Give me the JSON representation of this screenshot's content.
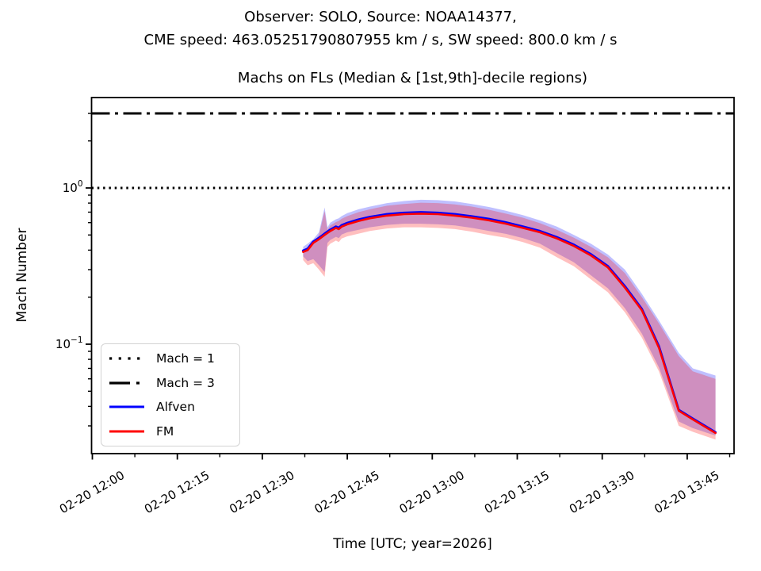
{
  "figure": {
    "suptitle_line1": "Observer: SOLO, Source: NOAA14377,",
    "suptitle_line2": "CME speed: 463.05251790807955 km / s, SW speed: 800.0 km / s"
  },
  "chart_data": {
    "type": "line",
    "title": "Machs on FLs (Median & [1st,9th]-decile regions)",
    "xlabel": "Time [UTC; year=2026]",
    "ylabel": "Mach Number",
    "y_scale": "log",
    "ylim": [
      0.02,
      3.8
    ],
    "grid": false,
    "x_tick_labels": [
      "02-20 12:00",
      "02-20 12:15",
      "02-20 12:30",
      "02-20 12:45",
      "02-20 13:00",
      "02-20 13:15",
      "02-20 13:30",
      "02-20 13:45"
    ],
    "x_tick_minutes": [
      0,
      15,
      30,
      45,
      60,
      75,
      90,
      105
    ],
    "x_minor_tick_minutes": [
      7.5,
      22.5,
      37.5,
      52.5,
      67.5,
      82.5,
      97.5,
      112.5
    ],
    "y_ticks": [
      {
        "value": 1,
        "label": "10^0"
      },
      {
        "value": 0.1,
        "label": "10^-1"
      }
    ],
    "y_minor_tick_values": [
      3,
      2,
      0.9,
      0.8,
      0.7,
      0.6,
      0.5,
      0.4,
      0.3,
      0.2,
      0.09,
      0.08,
      0.07,
      0.06,
      0.05,
      0.04,
      0.03
    ],
    "reference_lines": [
      {
        "label": "Mach = 1",
        "value": 1,
        "style": "dotted",
        "color": "#000000"
      },
      {
        "label": "Mach = 3",
        "value": 3,
        "style": "dashdot",
        "color": "#000000"
      }
    ],
    "band_alpha": 0.25,
    "x_minutes_after_1200utc": [
      37.2,
      38,
      39,
      40,
      41,
      41.5,
      42,
      43,
      43.5,
      44,
      45,
      47,
      49,
      52,
      55,
      58,
      61,
      64,
      67,
      70,
      73,
      76,
      79,
      82,
      85,
      88,
      91,
      94,
      97,
      100,
      103.5,
      106,
      110
    ],
    "series": [
      {
        "name": "Alfven",
        "color": "#0000ff",
        "median": [
          0.397,
          0.408,
          0.453,
          0.479,
          0.51,
          0.525,
          0.541,
          0.566,
          0.556,
          0.577,
          0.597,
          0.628,
          0.653,
          0.679,
          0.694,
          0.699,
          0.694,
          0.679,
          0.658,
          0.633,
          0.602,
          0.566,
          0.53,
          0.484,
          0.433,
          0.377,
          0.316,
          0.235,
          0.168,
          0.097,
          0.038,
          0.0334,
          0.0273
        ],
        "decile_9th": [
          0.42,
          0.44,
          0.47,
          0.52,
          0.75,
          0.56,
          0.6,
          0.63,
          0.64,
          0.66,
          0.69,
          0.73,
          0.76,
          0.8,
          0.825,
          0.84,
          0.835,
          0.82,
          0.79,
          0.755,
          0.715,
          0.67,
          0.62,
          0.565,
          0.5,
          0.44,
          0.375,
          0.3,
          0.21,
          0.142,
          0.088,
          0.07,
          0.063
        ],
        "decile_1st": [
          0.365,
          0.34,
          0.35,
          0.32,
          0.29,
          0.445,
          0.465,
          0.487,
          0.477,
          0.503,
          0.52,
          0.54,
          0.56,
          0.58,
          0.59,
          0.59,
          0.585,
          0.575,
          0.555,
          0.53,
          0.508,
          0.477,
          0.44,
          0.382,
          0.334,
          0.276,
          0.228,
          0.17,
          0.117,
          0.071,
          0.032,
          0.029,
          0.026
        ]
      },
      {
        "name": "FM",
        "color": "#ff0000",
        "median": [
          0.39,
          0.4,
          0.445,
          0.47,
          0.5,
          0.515,
          0.53,
          0.555,
          0.545,
          0.565,
          0.585,
          0.615,
          0.64,
          0.665,
          0.68,
          0.685,
          0.68,
          0.665,
          0.645,
          0.62,
          0.59,
          0.555,
          0.52,
          0.475,
          0.425,
          0.37,
          0.31,
          0.23,
          0.165,
          0.095,
          0.0375,
          0.033,
          0.027
        ],
        "decile_9th": [
          0.4,
          0.42,
          0.45,
          0.5,
          0.71,
          0.54,
          0.575,
          0.605,
          0.615,
          0.635,
          0.66,
          0.7,
          0.73,
          0.77,
          0.79,
          0.805,
          0.8,
          0.785,
          0.76,
          0.725,
          0.685,
          0.645,
          0.595,
          0.54,
          0.48,
          0.42,
          0.36,
          0.285,
          0.2,
          0.136,
          0.084,
          0.067,
          0.06
        ],
        "decile_1st": [
          0.345,
          0.32,
          0.33,
          0.3,
          0.27,
          0.42,
          0.44,
          0.46,
          0.45,
          0.475,
          0.49,
          0.51,
          0.53,
          0.55,
          0.56,
          0.56,
          0.555,
          0.545,
          0.525,
          0.5,
          0.48,
          0.45,
          0.415,
          0.36,
          0.315,
          0.26,
          0.215,
          0.16,
          0.11,
          0.067,
          0.03,
          0.0275,
          0.0245
        ]
      }
    ],
    "legend": {
      "position": "lower left",
      "entries": [
        {
          "label": "Mach = 1",
          "style": "dotted",
          "color": "#000000"
        },
        {
          "label": "Mach = 3",
          "style": "dashdot",
          "color": "#000000"
        },
        {
          "label": "Alfven",
          "style": "solid",
          "color": "#0000ff"
        },
        {
          "label": "FM",
          "style": "solid",
          "color": "#ff0000"
        }
      ]
    }
  }
}
